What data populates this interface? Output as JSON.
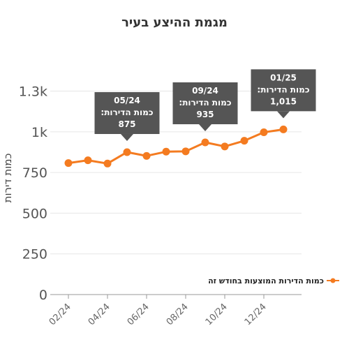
{
  "chart_data": {
    "type": "line",
    "title": "מגמת ההיצע בעיר",
    "ylabel": "כמות דירות",
    "xlabel": "",
    "ylim": [
      0,
      1300
    ],
    "yticks": [
      {
        "value": 0,
        "label": "0"
      },
      {
        "value": 250,
        "label": "250"
      },
      {
        "value": 500,
        "label": "500"
      },
      {
        "value": 750,
        "label": "750"
      },
      {
        "value": 1000,
        "label": "1k"
      },
      {
        "value": 1250,
        "label": "1.3k"
      }
    ],
    "xticks": [
      "02/24",
      "04/24",
      "06/24",
      "08/24",
      "10/24",
      "12/24"
    ],
    "x": [
      "02/24",
      "03/24",
      "04/24",
      "05/24",
      "06/24",
      "07/24",
      "08/24",
      "09/24",
      "10/24",
      "11/24",
      "12/24",
      "01/25"
    ],
    "series": [
      {
        "name": "כמות הדירות המוצעות בחודש זה",
        "color": "#f47b20",
        "values": [
          808,
          825,
          805,
          875,
          852,
          878,
          880,
          935,
          910,
          945,
          997,
          1015
        ]
      }
    ],
    "grid": "horizontal",
    "legend_position": "right",
    "tooltips": [
      {
        "x": "05/24",
        "label": "כמות הדירות:",
        "value": "875"
      },
      {
        "x": "09/24",
        "label": "כמות הדירות:",
        "value": "935"
      },
      {
        "x": "01/25",
        "label": "כמות הדירות:",
        "value": "1,015"
      }
    ]
  }
}
